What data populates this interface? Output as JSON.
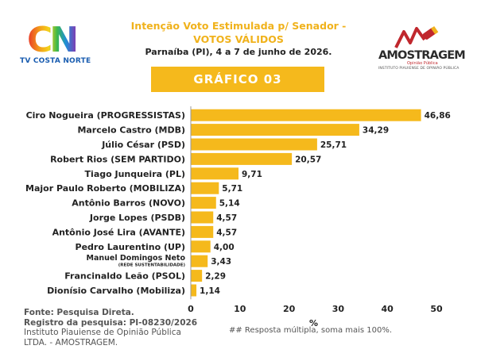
{
  "header": {
    "logo_left": "CN",
    "logo_left_sub": "TV COSTA NORTE",
    "title_line1": "Intenção Voto Estimulada p/ Senador  -",
    "title_line2": "VOTOS VÁLIDOS",
    "subtitle": "Parnaíba (PI), 4 a 7 de junho de 2026.",
    "logo_right": "AMOSTRAGEM",
    "logo_right_tag": "Opinião Pública",
    "logo_right_inst": "INSTITUTO PIAUIENSE DE OPINIÃO PÚBLICA"
  },
  "banner": {
    "label": "GRÁFICO 03"
  },
  "chart_data": {
    "type": "bar",
    "orientation": "horizontal",
    "categories": [
      "Ciro Nogueira (PROGRESSISTAS)",
      "Marcelo Castro (MDB)",
      "Júlio César (PSD)",
      "Robert Rios (SEM PARTIDO)",
      "Tiago Junqueira (PL)",
      "Major Paulo Roberto (MOBILIZA)",
      "Antônio Barros (NOVO)",
      "Jorge Lopes (PSDB)",
      "Antônio José Lira (AVANTE)",
      "Pedro Laurentino (UP)",
      "Manuel Domingos Neto",
      "Francinaldo Leão (PSOL)",
      "Dionísio Carvalho (Mobiliza)"
    ],
    "category_sublabels": [
      "",
      "",
      "",
      "",
      "",
      "",
      "",
      "",
      "",
      "",
      "(REDE SUSTENTABILIDADE)",
      "",
      ""
    ],
    "values": [
      46.86,
      34.29,
      25.71,
      20.57,
      9.71,
      5.71,
      5.14,
      4.57,
      4.57,
      4.0,
      3.43,
      2.29,
      1.14
    ],
    "value_labels": [
      "46,86",
      "34,29",
      "25,71",
      "20,57",
      "9,71",
      "5,71",
      "5,14",
      "4,57",
      "4,57",
      "4,00",
      "3,43",
      "2,29",
      "1,14"
    ],
    "xlim": [
      0,
      50
    ],
    "xticks": [
      0,
      10,
      20,
      30,
      40,
      50
    ],
    "xlabel": "%",
    "bar_color": "#f5b91c",
    "grid": false
  },
  "footer": {
    "source": "Fonte: Pesquisa Direta.",
    "registry": "Registro da pesquisa: PI-08230/2026",
    "institute_line1": "Instituto Piauiense de Opinião Pública",
    "institute_line2": "LTDA. - AMOSTRAGEM."
  },
  "note": "## Resposta múltipla, soma mais 100%."
}
